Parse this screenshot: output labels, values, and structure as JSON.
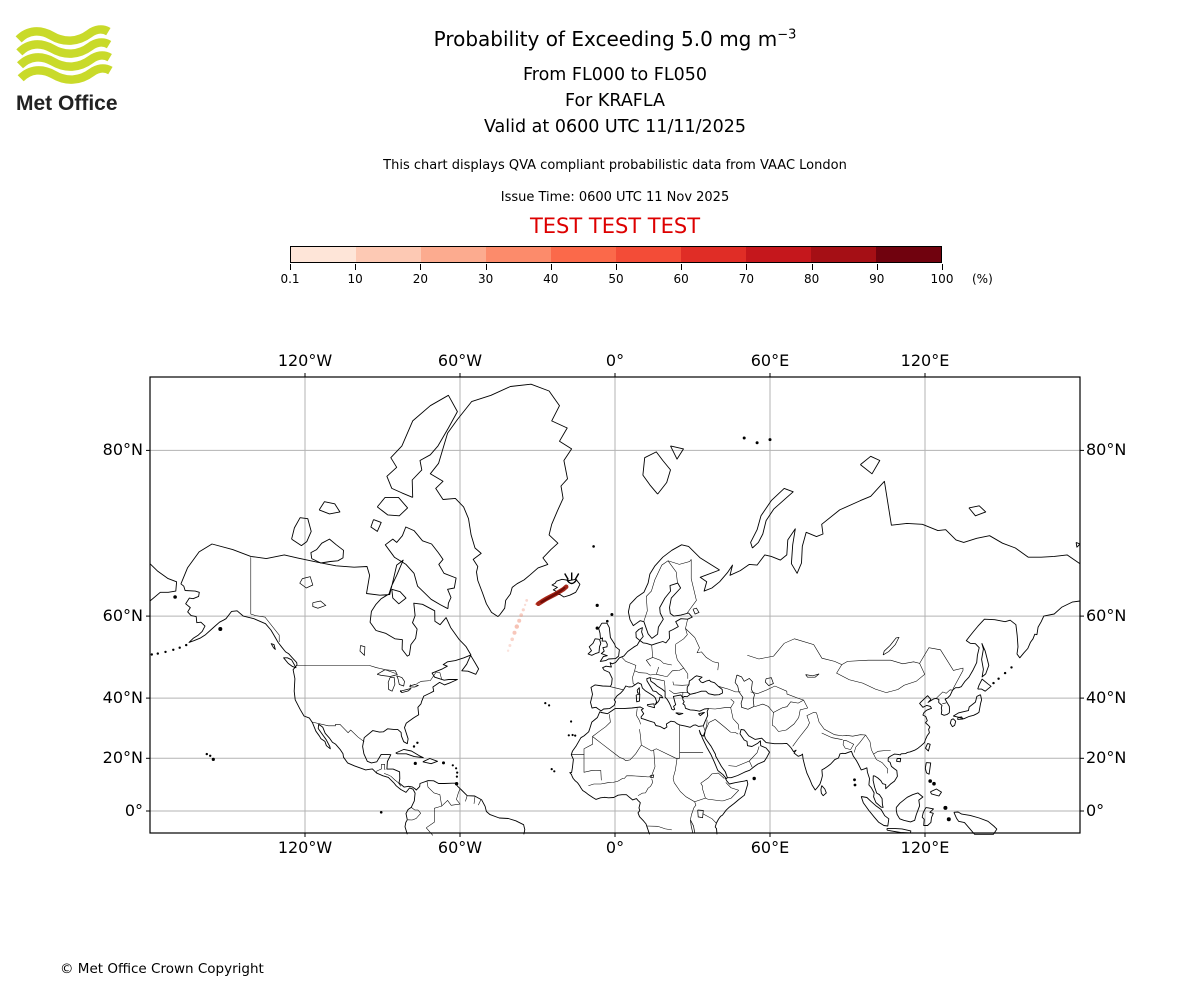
{
  "header": {
    "logo_text": "Met Office",
    "logo_color": "#c9da2a",
    "title_prefix": "Probability of Exceeding 5.0 mg m",
    "title_sup": "−3",
    "subtitle1": "From FL000 to FL050",
    "subtitle2": "For KRAFLA",
    "subtitle3": "Valid at 0600 UTC 11/11/2025",
    "note": "This chart displays QVA compliant probabilistic data from VAAC London",
    "issue_time": "Issue Time: 0600 UTC 11 Nov 2025",
    "test_banner": "TEST TEST TEST",
    "test_color": "#dd0000"
  },
  "colorbar": {
    "tick_labels": [
      "0.1",
      "10",
      "20",
      "30",
      "40",
      "50",
      "60",
      "70",
      "80",
      "90",
      "100"
    ],
    "unit_label": "(%)",
    "colors": [
      "#fee5d8",
      "#fdc9b4",
      "#fcab8f",
      "#fc8b6b",
      "#fb694a",
      "#f34c37",
      "#e02d26",
      "#c5171c",
      "#a50f15",
      "#70020e"
    ]
  },
  "map": {
    "lon_labels": [
      "120°W",
      "60°W",
      "0°",
      "60°E",
      "120°E"
    ],
    "lat_labels": [
      "80°N",
      "60°N",
      "40°N",
      "20°N",
      "0°"
    ],
    "grid_color": "#b3b3b3"
  },
  "footer": {
    "copyright": "© Met Office Crown Copyright"
  }
}
